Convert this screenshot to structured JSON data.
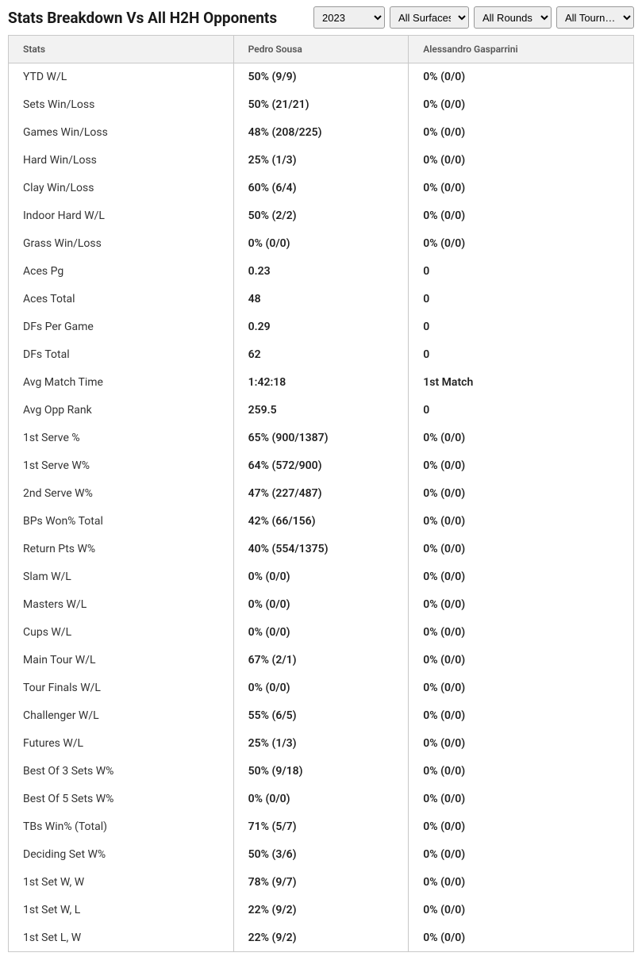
{
  "header": {
    "title": "Stats Breakdown Vs All H2H Opponents"
  },
  "filters": {
    "year": {
      "value": "2023",
      "options": [
        "2023"
      ]
    },
    "surface": {
      "value": "All Surfaces",
      "options": [
        "All Surfaces"
      ]
    },
    "rounds": {
      "value": "All Rounds",
      "options": [
        "All Rounds"
      ]
    },
    "tournaments": {
      "value": "All Tourn…",
      "options": [
        "All Tourn…"
      ]
    }
  },
  "table": {
    "columns": [
      "Stats",
      "Pedro Sousa",
      "Alessandro Gasparrini"
    ],
    "col_widths": [
      "36%",
      "28%",
      "36%"
    ],
    "header_bg": "#f2f2f2",
    "header_color": "#555555",
    "border_color": "#c8c8c8",
    "row_font_size": 14,
    "header_font_size": 12,
    "cell_bold_cols": [
      1,
      2
    ],
    "rows": [
      [
        "YTD W/L",
        "50% (9/9)",
        "0% (0/0)"
      ],
      [
        "Sets Win/Loss",
        "50% (21/21)",
        "0% (0/0)"
      ],
      [
        "Games Win/Loss",
        "48% (208/225)",
        "0% (0/0)"
      ],
      [
        "Hard Win/Loss",
        "25% (1/3)",
        "0% (0/0)"
      ],
      [
        "Clay Win/Loss",
        "60% (6/4)",
        "0% (0/0)"
      ],
      [
        "Indoor Hard W/L",
        "50% (2/2)",
        "0% (0/0)"
      ],
      [
        "Grass Win/Loss",
        "0% (0/0)",
        "0% (0/0)"
      ],
      [
        "Aces Pg",
        "0.23",
        "0"
      ],
      [
        "Aces Total",
        "48",
        "0"
      ],
      [
        "DFs Per Game",
        "0.29",
        "0"
      ],
      [
        "DFs Total",
        "62",
        "0"
      ],
      [
        "Avg Match Time",
        "1:42:18",
        "1st Match"
      ],
      [
        "Avg Opp Rank",
        "259.5",
        "0"
      ],
      [
        "1st Serve %",
        "65% (900/1387)",
        "0% (0/0)"
      ],
      [
        "1st Serve W%",
        "64% (572/900)",
        "0% (0/0)"
      ],
      [
        "2nd Serve W%",
        "47% (227/487)",
        "0% (0/0)"
      ],
      [
        "BPs Won% Total",
        "42% (66/156)",
        "0% (0/0)"
      ],
      [
        "Return Pts W%",
        "40% (554/1375)",
        "0% (0/0)"
      ],
      [
        "Slam W/L",
        "0% (0/0)",
        "0% (0/0)"
      ],
      [
        "Masters W/L",
        "0% (0/0)",
        "0% (0/0)"
      ],
      [
        "Cups W/L",
        "0% (0/0)",
        "0% (0/0)"
      ],
      [
        "Main Tour W/L",
        "67% (2/1)",
        "0% (0/0)"
      ],
      [
        "Tour Finals W/L",
        "0% (0/0)",
        "0% (0/0)"
      ],
      [
        "Challenger W/L",
        "55% (6/5)",
        "0% (0/0)"
      ],
      [
        "Futures W/L",
        "25% (1/3)",
        "0% (0/0)"
      ],
      [
        "Best Of 3 Sets W%",
        "50% (9/18)",
        "0% (0/0)"
      ],
      [
        "Best Of 5 Sets W%",
        "0% (0/0)",
        "0% (0/0)"
      ],
      [
        "TBs Win% (Total)",
        "71% (5/7)",
        "0% (0/0)"
      ],
      [
        "Deciding Set W%",
        "50% (3/6)",
        "0% (0/0)"
      ],
      [
        "1st Set W, W",
        "78% (9/7)",
        "0% (0/0)"
      ],
      [
        "1st Set W, L",
        "22% (9/2)",
        "0% (0/0)"
      ],
      [
        "1st Set L, W",
        "22% (9/2)",
        "0% (0/0)"
      ]
    ]
  },
  "colors": {
    "background": "#ffffff",
    "text_primary": "#1a1a1a",
    "text_body": "#222222"
  }
}
